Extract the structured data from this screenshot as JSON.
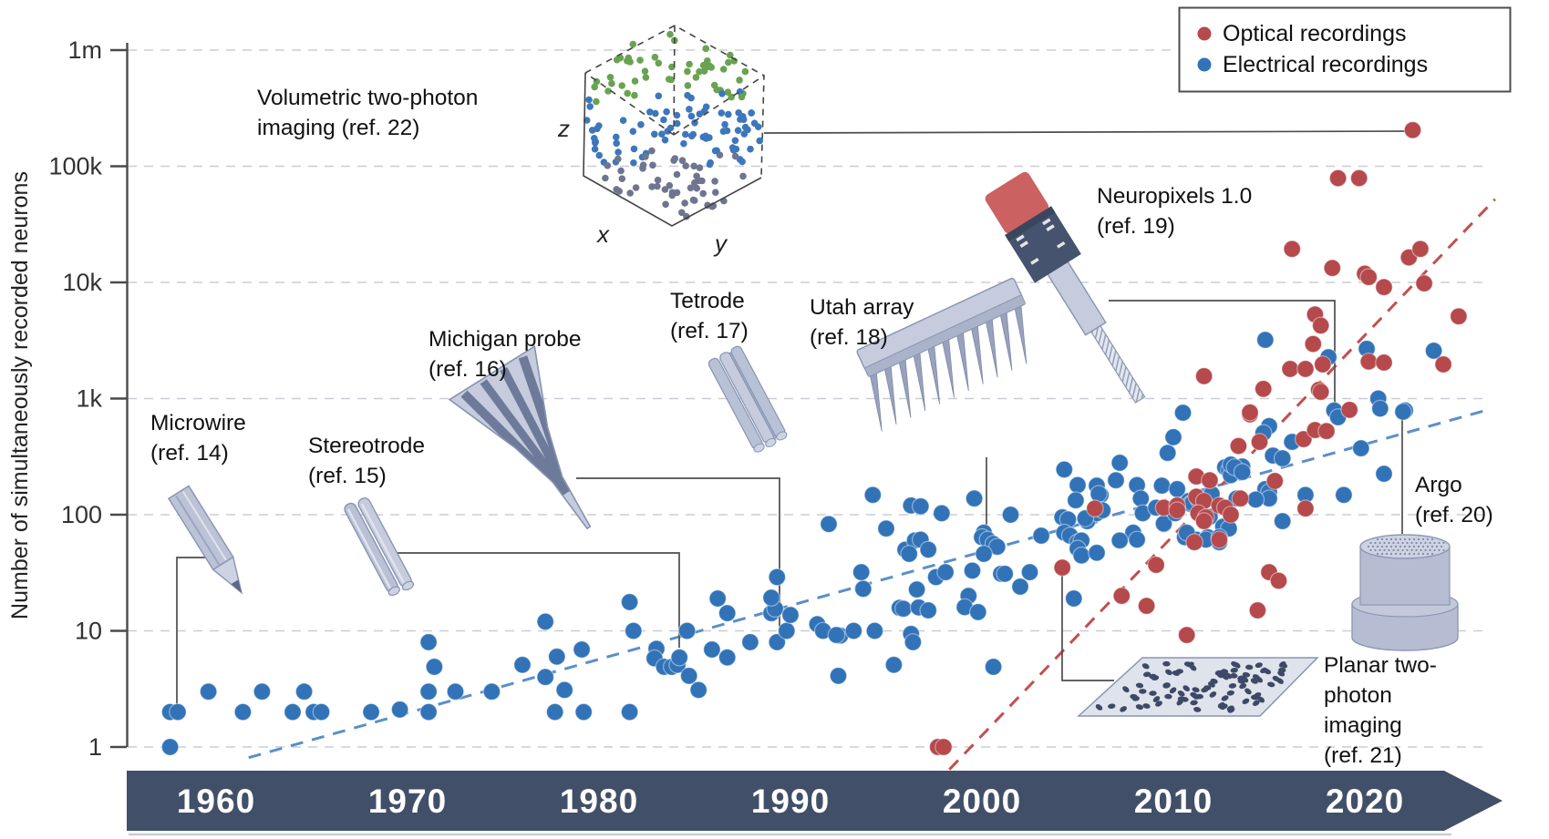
{
  "figure": {
    "y_axis": {
      "title": "Number of simultaneously recorded neurons",
      "ticks": [
        {
          "label": "1m",
          "value": 1000000
        },
        {
          "label": "100k",
          "value": 100000
        },
        {
          "label": "10k",
          "value": 10000
        },
        {
          "label": "1k",
          "value": 1000
        },
        {
          "label": "100",
          "value": 100
        },
        {
          "label": "10",
          "value": 10
        },
        {
          "label": "1",
          "value": 1
        }
      ]
    },
    "x_axis": {
      "year_labels": [
        "1960",
        "1970",
        "1980",
        "1990",
        "2000",
        "2010",
        "2020"
      ]
    },
    "legend": {
      "entries": [
        {
          "label": "Optical recordings",
          "color": "#b5494b"
        },
        {
          "label": "Electrical recordings",
          "color": "#3273b8"
        }
      ]
    },
    "cube_axis_labels": {
      "x": "x",
      "y": "y",
      "z": "z"
    },
    "annotations": [
      {
        "id": "microwire",
        "lines": [
          "Microwire",
          "(ref. 14)"
        ],
        "target": {
          "year": 1958,
          "neurons": 2
        }
      },
      {
        "id": "stereotrode",
        "lines": [
          "Stereotrode",
          "(ref. 15)"
        ],
        "target": {
          "year": 1984.2,
          "neurons": 7
        }
      },
      {
        "id": "michigan-probe",
        "lines": [
          "Michigan probe",
          "(ref. 16)"
        ],
        "target": {
          "year": 1989.5,
          "neurons": 10
        }
      },
      {
        "id": "tetrode",
        "lines": [
          "Tetrode",
          "(ref. 17)"
        ],
        "target": {
          "year": 1989.5,
          "neurons": 10
        }
      },
      {
        "id": "utah-array",
        "lines": [
          "Utah array",
          "(ref. 18)"
        ],
        "target": {
          "year": 2004.3,
          "neurons": 74
        }
      },
      {
        "id": "neuropixels",
        "lines": [
          "Neuropixels 1.0",
          "(ref. 19)"
        ],
        "target": {
          "year": 2018.4,
          "neurons": 790
        }
      },
      {
        "id": "argo",
        "lines": [
          "Argo",
          "(ref. 20)"
        ],
        "target": {
          "year": 2022,
          "neurons": 770
        }
      },
      {
        "id": "planar-two-photon",
        "lines": [
          "Planar two-",
          "photon",
          "imaging",
          "(ref. 21)"
        ],
        "target": {
          "year": 2004.2,
          "neurons": 35
        }
      },
      {
        "id": "volumetric-two-photon",
        "lines": [
          "Volumetric two-photon",
          "imaging (ref. 22)"
        ],
        "target": {
          "year": 2022.5,
          "neurons": 205000
        }
      }
    ],
    "colors": {
      "optical": "#b5494b",
      "electrical": "#3273b8",
      "optical_trend": "#c24f4d",
      "electrical_trend": "#5b8fc9",
      "timeline_band": "#414f68",
      "gridline": "#c9cdd6",
      "axis": "#4a4a4a",
      "connector": "#4d4d4d"
    }
  },
  "chart_data": {
    "type": "scatter",
    "title": "",
    "xlabel": "",
    "ylabel": "Number of simultaneously recorded neurons",
    "x_range": [
      1955.4,
      2026.7
    ],
    "y_scale": "log",
    "y_range": [
      1,
      1000000
    ],
    "x_tick_labels": [
      "1960",
      "1970",
      "1980",
      "1990",
      "2000",
      "2010",
      "2020"
    ],
    "y_tick_labels": [
      "1m",
      "100k",
      "10k",
      "1k",
      "100",
      "10",
      "1"
    ],
    "grid": "horizontal-dashed",
    "legend_position": "top-right",
    "series": [
      {
        "name": "Electrical recordings",
        "color": "#3273b8",
        "points": [
          [
            1957.6,
            1
          ],
          [
            1957.6,
            2
          ],
          [
            1958,
            2
          ],
          [
            1959.6,
            3
          ],
          [
            1961.4,
            2
          ],
          [
            1962.4,
            3
          ],
          [
            1964,
            2
          ],
          [
            1964.6,
            3
          ],
          [
            1965.1,
            2
          ],
          [
            1965.5,
            2
          ],
          [
            1968.1,
            2
          ],
          [
            1969.6,
            2.1
          ],
          [
            1971.1,
            8
          ],
          [
            1971.4,
            4.9
          ],
          [
            1971.1,
            3
          ],
          [
            1971.1,
            2
          ],
          [
            1972.5,
            3
          ],
          [
            1974.4,
            3
          ],
          [
            1976,
            5.1
          ],
          [
            1977.2,
            12
          ],
          [
            1977.8,
            6
          ],
          [
            1977.2,
            4
          ],
          [
            1978.2,
            3.1
          ],
          [
            1977.7,
            2
          ],
          [
            1979.1,
            6.9
          ],
          [
            1979.2,
            2
          ],
          [
            1981.6,
            17.7
          ],
          [
            1981.8,
            10
          ],
          [
            1981.6,
            2
          ],
          [
            1983,
            7
          ],
          [
            1982.9,
            5.8
          ],
          [
            1983.4,
            4.9
          ],
          [
            1983.8,
            4.9
          ],
          [
            1984.1,
            5.1
          ],
          [
            1984.2,
            5.9
          ],
          [
            1984.6,
            10
          ],
          [
            1984.7,
            4.1
          ],
          [
            1985.2,
            3.1
          ],
          [
            1986.2,
            19
          ],
          [
            1985.9,
            6.9
          ],
          [
            1986.7,
            14.2
          ],
          [
            1986.7,
            5.9
          ],
          [
            1987.9,
            8
          ],
          [
            1989,
            14.2
          ],
          [
            1989.2,
            15.5
          ],
          [
            1989.3,
            29
          ],
          [
            1989,
            19.3
          ],
          [
            1989.3,
            8
          ],
          [
            1989.8,
            10
          ],
          [
            1990,
            13.7
          ],
          [
            1991.4,
            11.4
          ],
          [
            1991.7,
            10
          ],
          [
            1992.6,
            9.1
          ],
          [
            1993.3,
            10
          ],
          [
            1994.4,
            10
          ],
          [
            1992,
            83
          ],
          [
            1992.4,
            9.2
          ],
          [
            1992.5,
            4.1
          ],
          [
            1993.7,
            32
          ],
          [
            1993.8,
            23
          ],
          [
            1994.3,
            148
          ],
          [
            1995,
            76
          ],
          [
            1995.7,
            15.8
          ],
          [
            1995.9,
            15.5
          ],
          [
            1996,
            50
          ],
          [
            1996.3,
            120
          ],
          [
            1996.5,
            60
          ],
          [
            1996.3,
            9.4
          ],
          [
            1996.4,
            8
          ],
          [
            1995.4,
            5.1
          ],
          [
            1996.8,
            118
          ],
          [
            1997.9,
            103
          ],
          [
            1999.6,
            138
          ],
          [
            1996.8,
            61
          ],
          [
            1997.2,
            50
          ],
          [
            1996.2,
            46
          ],
          [
            1997.6,
            29
          ],
          [
            1998.1,
            32
          ],
          [
            1996.6,
            22.7
          ],
          [
            1996.7,
            15.9
          ],
          [
            1997.2,
            15
          ],
          [
            1999.3,
            20
          ],
          [
            1999.1,
            16
          ],
          [
            1999.8,
            14.5
          ],
          [
            1999.5,
            33
          ],
          [
            2001.5,
            100
          ],
          [
            2000.1,
            70
          ],
          [
            2000,
            64
          ],
          [
            2000.3,
            61
          ],
          [
            2000.6,
            56
          ],
          [
            2000.8,
            53
          ],
          [
            2000.1,
            46
          ],
          [
            2001,
            31
          ],
          [
            2001.2,
            31
          ],
          [
            2002,
            24
          ],
          [
            2002.5,
            32
          ],
          [
            2000.6,
            4.9
          ],
          [
            2003.1,
            66
          ],
          [
            2004.3,
            245
          ],
          [
            2005,
            180
          ],
          [
            2004.2,
            95
          ],
          [
            2004.5,
            91
          ],
          [
            2004.3,
            70
          ],
          [
            2004.6,
            66
          ],
          [
            2005,
            58
          ],
          [
            2005.2,
            60
          ],
          [
            2005,
            51
          ],
          [
            2005.2,
            44.5
          ],
          [
            2005.7,
            95
          ],
          [
            2005.5,
            88
          ],
          [
            2006,
            103
          ],
          [
            2006.2,
            148
          ],
          [
            2007.2,
            280
          ],
          [
            2007,
            198
          ],
          [
            2008.1,
            180
          ],
          [
            2008.3,
            138
          ],
          [
            2008.4,
            103
          ],
          [
            2009.4,
            178
          ],
          [
            2009.7,
            340
          ],
          [
            2010,
            465
          ],
          [
            2010.5,
            755
          ],
          [
            2009.5,
            83
          ],
          [
            2010.8,
            131
          ],
          [
            2010.9,
            124
          ],
          [
            2010.6,
            64
          ],
          [
            2011.2,
            61
          ],
          [
            2011.8,
            64
          ],
          [
            2012.4,
            58
          ],
          [
            2007.9,
            70
          ],
          [
            2008.1,
            61
          ],
          [
            2004.8,
            19
          ],
          [
            2006,
            178
          ],
          [
            2004.9,
            133
          ],
          [
            2006.1,
            151
          ],
          [
            2006.3,
            109
          ],
          [
            2009.1,
            115
          ],
          [
            2010.2,
            166
          ],
          [
            2005.4,
            93
          ],
          [
            2006,
            47
          ],
          [
            2007.2,
            60
          ],
          [
            2009.5,
            84
          ],
          [
            2010.1,
            103
          ],
          [
            2011,
            126
          ],
          [
            2011.3,
            135
          ],
          [
            2012,
            151
          ],
          [
            2012.7,
            256
          ],
          [
            2012.9,
            240
          ],
          [
            2013,
            219
          ],
          [
            2013.6,
            260
          ],
          [
            2011.9,
            96
          ],
          [
            2012.6,
            79
          ],
          [
            2012.9,
            76
          ],
          [
            2010.7,
            70
          ],
          [
            2011.7,
            61
          ],
          [
            2012.4,
            64
          ],
          [
            2014.8,
            3200
          ],
          [
            2018.1,
            2270
          ],
          [
            2020.1,
            2680
          ],
          [
            2023.6,
            2580
          ],
          [
            2020.7,
            1000
          ],
          [
            2020.8,
            820
          ],
          [
            2022.1,
            790
          ],
          [
            2022,
            770
          ],
          [
            2018.4,
            790
          ],
          [
            2018.6,
            690
          ],
          [
            2015,
            580
          ],
          [
            2014.7,
            505
          ],
          [
            2016.2,
            423
          ],
          [
            2015.2,
            323
          ],
          [
            2015.7,
            306
          ],
          [
            2013,
            270
          ],
          [
            2013.2,
            256
          ],
          [
            2013.6,
            233
          ],
          [
            2014.8,
            166
          ],
          [
            2015,
            157
          ],
          [
            2015,
            138
          ],
          [
            2014.3,
            135
          ],
          [
            2013.3,
            138
          ],
          [
            2016.9,
            148
          ],
          [
            2015.7,
            88
          ],
          [
            2018.9,
            148
          ],
          [
            2021,
            225
          ],
          [
            2019.8,
            373
          ]
        ]
      },
      {
        "name": "Optical recordings",
        "color": "#b5494b",
        "points": [
          [
            1997.7,
            1
          ],
          [
            1998,
            1
          ],
          [
            2004.2,
            35
          ],
          [
            2007.3,
            20
          ],
          [
            2008.6,
            16.4
          ],
          [
            2010.7,
            9.2
          ],
          [
            2009.1,
            37
          ],
          [
            2015,
            32
          ],
          [
            2015.5,
            27
          ],
          [
            2014.4,
            15
          ],
          [
            2005.9,
            113
          ],
          [
            2009.5,
            115
          ],
          [
            2010.2,
            120
          ],
          [
            2010.2,
            109
          ],
          [
            2011.2,
            143
          ],
          [
            2011.6,
            131
          ],
          [
            2011.3,
            103
          ],
          [
            2011.7,
            95
          ],
          [
            2011.6,
            88
          ],
          [
            2012.4,
            120
          ],
          [
            2012.7,
            115
          ],
          [
            2012.4,
            61
          ],
          [
            2011.2,
            213
          ],
          [
            2011.9,
            198
          ],
          [
            2013.5,
            138
          ],
          [
            2013.4,
            390
          ],
          [
            2011.1,
            58
          ],
          [
            2014.7,
            1210
          ],
          [
            2017.6,
            1190
          ],
          [
            2014,
            730
          ],
          [
            2014.5,
            423
          ],
          [
            2016.8,
            447
          ],
          [
            2017.4,
            535
          ],
          [
            2018,
            525
          ],
          [
            2013,
            100
          ],
          [
            2015.3,
            195
          ],
          [
            2016.9,
            113
          ],
          [
            2022.5,
            205000
          ],
          [
            2018.6,
            79000
          ],
          [
            2019.7,
            79000
          ],
          [
            2016.2,
            19400
          ],
          [
            2018.3,
            13300
          ],
          [
            2020,
            11900
          ],
          [
            2020.2,
            11100
          ],
          [
            2021,
            9100
          ],
          [
            2022.3,
            16400
          ],
          [
            2022.9,
            19400
          ],
          [
            2023.1,
            9800
          ],
          [
            2024.9,
            5100
          ],
          [
            2017.4,
            5300
          ],
          [
            2017.7,
            4250
          ],
          [
            2017.3,
            2950
          ],
          [
            2016.1,
            1800
          ],
          [
            2016.9,
            1800
          ],
          [
            2017.8,
            1970
          ],
          [
            2011.6,
            1560
          ],
          [
            2020.2,
            2080
          ],
          [
            2021,
            2040
          ],
          [
            2024.1,
            1970
          ],
          [
            2017.7,
            1140
          ],
          [
            2014,
            760
          ],
          [
            2019.2,
            800
          ]
        ]
      }
    ],
    "trend_lines": [
      {
        "series": "Electrical recordings",
        "style": "dashed",
        "color": "#5b8fc9",
        "from": {
          "year": 1961.7,
          "neurons": 0.81
        },
        "to": {
          "year": 2026.3,
          "neurons": 790
        }
      },
      {
        "series": "Optical recordings",
        "style": "dashed",
        "color": "#c24f4d",
        "from": {
          "year": 1998.3,
          "neurons": 0.64
        },
        "to": {
          "year": 2026.8,
          "neurons": 52000
        }
      }
    ]
  }
}
